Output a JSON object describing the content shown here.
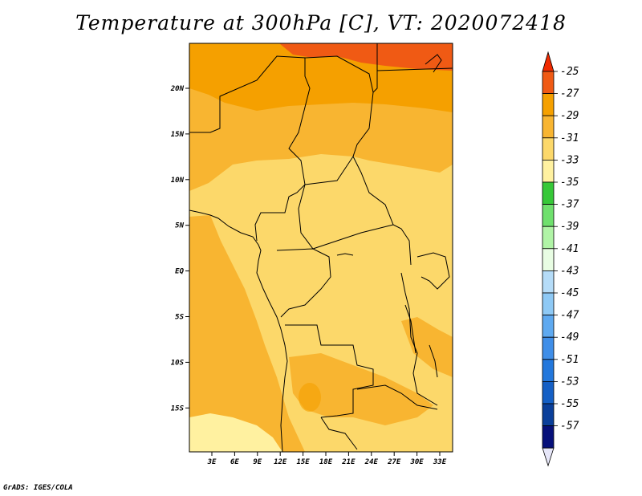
{
  "title": "Temperature at 300hPa [C], VT: 2020072418",
  "credit": "GrADS: IGES/COLA",
  "map": {
    "lat_ticks": [
      "20N",
      "15N",
      "10N",
      "5N",
      "EQ",
      "5S",
      "10S",
      "15S"
    ],
    "lon_ticks": [
      "3E",
      "6E",
      "9E",
      "12E",
      "15E",
      "18E",
      "21E",
      "24E",
      "27E",
      "30E",
      "33E"
    ],
    "field_bands_C": [
      "-25 to -27",
      "-27 to -29",
      "-29 to -31",
      "-31 to -33",
      "-33 to -35"
    ]
  },
  "colorbar": {
    "labels": [
      "-25",
      "-27",
      "-29",
      "-31",
      "-33",
      "-35",
      "-37",
      "-39",
      "-41",
      "-43",
      "-45",
      "-47",
      "-49",
      "-51",
      "-53",
      "-55",
      "-57"
    ],
    "colors": [
      "#f05a14",
      "#f5a000",
      "#f8b531",
      "#fcd86a",
      "#fff1a0",
      "#36c838",
      "#6fe06d",
      "#b0f4a6",
      "#e8fde3",
      "#b5dcf8",
      "#8ec9f5",
      "#5ea9f0",
      "#3f8ee8",
      "#2277dc",
      "#145fc5",
      "#0a3f9a",
      "#06107a"
    ],
    "top_arrow_color": "#f02a00",
    "bottom_arrow_color": "#e6e6f8"
  }
}
